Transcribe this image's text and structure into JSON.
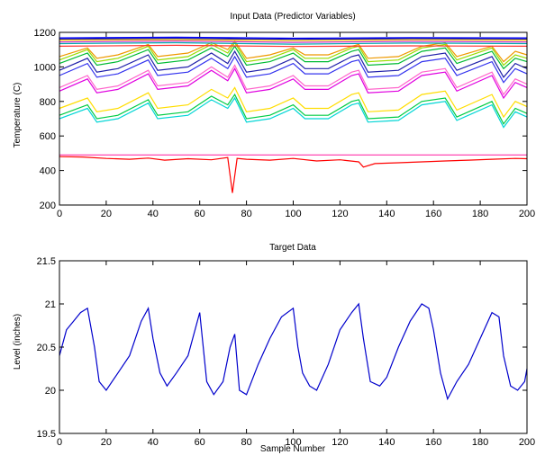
{
  "chart_data": [
    {
      "type": "line",
      "title": "Input Data (Predictor Variables)",
      "xlabel": "",
      "ylabel": "Temperature (C)",
      "xlim": [
        0,
        200
      ],
      "ylim": [
        200,
        1200
      ],
      "xticks": [
        0,
        20,
        40,
        60,
        80,
        100,
        120,
        140,
        160,
        180,
        200
      ],
      "yticks": [
        200,
        400,
        600,
        800,
        1000,
        1200
      ],
      "grid": false,
      "colors": [
        "#ff0000",
        "#ff33aa",
        "#00d5d5",
        "#00cc44",
        "#ffdd00",
        "#e000e0",
        "#ff66cc",
        "#3333ee",
        "#2222aa",
        "#00bb33",
        "#99dd00",
        "#ee9900",
        "#ff3333",
        "#00aaaa",
        "#cc33cc",
        "#ffcc00",
        "#000099",
        "#0000ff"
      ],
      "series": [
        {
          "x": [
            0,
            10,
            20,
            30,
            38,
            45,
            55,
            65,
            72,
            74,
            76,
            80,
            90,
            100,
            110,
            120,
            128,
            130,
            135,
            145,
            155,
            165,
            175,
            185,
            195,
            200
          ],
          "y": [
            480,
            478,
            470,
            465,
            472,
            460,
            468,
            462,
            475,
            270,
            470,
            465,
            460,
            470,
            455,
            462,
            450,
            420,
            440,
            445,
            450,
            455,
            460,
            465,
            470,
            468
          ]
        },
        {
          "x": [
            0,
            200
          ],
          "y": [
            490,
            490
          ]
        },
        {
          "x": [
            0,
            12,
            16,
            25,
            38,
            42,
            55,
            65,
            72,
            75,
            80,
            90,
            100,
            105,
            115,
            125,
            128,
            132,
            145,
            155,
            165,
            170,
            185,
            190,
            195,
            200
          ],
          "y": [
            700,
            760,
            680,
            700,
            790,
            700,
            720,
            810,
            760,
            820,
            680,
            700,
            760,
            700,
            700,
            780,
            790,
            680,
            690,
            780,
            800,
            690,
            780,
            650,
            740,
            710
          ]
        },
        {
          "x": [
            0,
            12,
            16,
            25,
            38,
            42,
            55,
            65,
            72,
            75,
            80,
            90,
            100,
            105,
            115,
            125,
            128,
            132,
            145,
            155,
            165,
            170,
            185,
            190,
            195,
            200
          ],
          "y": [
            720,
            780,
            700,
            720,
            810,
            720,
            740,
            830,
            780,
            840,
            700,
            720,
            780,
            720,
            720,
            800,
            810,
            700,
            710,
            800,
            820,
            710,
            800,
            670,
            760,
            730
          ]
        },
        {
          "x": [
            0,
            12,
            16,
            25,
            38,
            42,
            55,
            65,
            72,
            75,
            80,
            90,
            100,
            105,
            115,
            125,
            128,
            132,
            145,
            155,
            165,
            170,
            185,
            190,
            195,
            200
          ],
          "y": [
            760,
            820,
            740,
            760,
            850,
            760,
            780,
            870,
            820,
            880,
            740,
            760,
            820,
            760,
            760,
            840,
            850,
            740,
            750,
            840,
            860,
            750,
            840,
            710,
            800,
            770
          ]
        },
        {
          "x": [
            0,
            12,
            16,
            25,
            38,
            42,
            55,
            65,
            72,
            75,
            80,
            90,
            100,
            105,
            115,
            125,
            128,
            132,
            145,
            155,
            165,
            170,
            185,
            190,
            195,
            200
          ],
          "y": [
            860,
            930,
            850,
            870,
            960,
            870,
            890,
            980,
            920,
            990,
            850,
            870,
            930,
            870,
            870,
            950,
            960,
            850,
            860,
            950,
            970,
            860,
            950,
            820,
            910,
            880
          ]
        },
        {
          "x": [
            0,
            12,
            16,
            25,
            38,
            42,
            55,
            65,
            72,
            75,
            80,
            90,
            100,
            105,
            115,
            125,
            128,
            132,
            145,
            155,
            165,
            170,
            185,
            190,
            195,
            200
          ],
          "y": [
            880,
            950,
            870,
            890,
            980,
            890,
            910,
            1000,
            940,
            1010,
            870,
            890,
            950,
            890,
            890,
            970,
            980,
            870,
            880,
            970,
            990,
            880,
            970,
            840,
            930,
            900
          ]
        },
        {
          "x": [
            0,
            12,
            16,
            25,
            38,
            42,
            55,
            65,
            72,
            75,
            80,
            90,
            100,
            105,
            115,
            125,
            128,
            132,
            145,
            155,
            165,
            170,
            185,
            190,
            195,
            200
          ],
          "y": [
            950,
            1020,
            940,
            960,
            1040,
            950,
            970,
            1050,
            990,
            1060,
            940,
            960,
            1020,
            960,
            960,
            1030,
            1040,
            940,
            950,
            1030,
            1050,
            950,
            1030,
            910,
            990,
            960
          ]
        },
        {
          "x": [
            0,
            12,
            16,
            25,
            38,
            42,
            55,
            65,
            72,
            75,
            80,
            90,
            100,
            105,
            115,
            125,
            128,
            132,
            145,
            155,
            165,
            170,
            185,
            190,
            195,
            200
          ],
          "y": [
            980,
            1050,
            970,
            990,
            1070,
            980,
            1000,
            1080,
            1020,
            1090,
            970,
            990,
            1050,
            990,
            990,
            1060,
            1070,
            970,
            980,
            1060,
            1080,
            980,
            1060,
            940,
            1020,
            990
          ]
        },
        {
          "x": [
            0,
            12,
            16,
            25,
            38,
            42,
            55,
            65,
            72,
            75,
            80,
            90,
            100,
            105,
            115,
            125,
            128,
            132,
            145,
            155,
            165,
            170,
            185,
            190,
            195,
            200
          ],
          "y": [
            1020,
            1080,
            1010,
            1030,
            1100,
            1020,
            1040,
            1110,
            1060,
            1120,
            1010,
            1030,
            1080,
            1030,
            1030,
            1090,
            1100,
            1010,
            1020,
            1090,
            1110,
            1020,
            1090,
            990,
            1050,
            1030
          ]
        },
        {
          "x": [
            0,
            12,
            16,
            25,
            38,
            42,
            55,
            65,
            72,
            75,
            80,
            90,
            100,
            105,
            115,
            125,
            128,
            132,
            145,
            155,
            165,
            170,
            185,
            190,
            195,
            200
          ],
          "y": [
            1040,
            1100,
            1030,
            1050,
            1120,
            1040,
            1060,
            1130,
            1080,
            1140,
            1030,
            1050,
            1100,
            1050,
            1050,
            1110,
            1120,
            1030,
            1040,
            1110,
            1130,
            1040,
            1110,
            1010,
            1070,
            1050
          ]
        },
        {
          "x": [
            0,
            12,
            16,
            25,
            38,
            42,
            55,
            65,
            72,
            75,
            80,
            90,
            100,
            105,
            115,
            125,
            128,
            132,
            145,
            155,
            165,
            170,
            185,
            190,
            195,
            200
          ],
          "y": [
            1060,
            1110,
            1050,
            1070,
            1130,
            1060,
            1080,
            1140,
            1100,
            1150,
            1050,
            1070,
            1110,
            1070,
            1070,
            1120,
            1130,
            1050,
            1060,
            1120,
            1140,
            1060,
            1120,
            1030,
            1090,
            1070
          ]
        },
        {
          "x": [
            0,
            50,
            100,
            150,
            200
          ],
          "y": [
            1120,
            1125,
            1118,
            1122,
            1120
          ]
        },
        {
          "x": [
            0,
            50,
            100,
            150,
            200
          ],
          "y": [
            1135,
            1140,
            1132,
            1138,
            1135
          ]
        },
        {
          "x": [
            0,
            50,
            100,
            150,
            200
          ],
          "y": [
            1145,
            1150,
            1142,
            1148,
            1145
          ]
        },
        {
          "x": [
            0,
            50,
            100,
            150,
            200
          ],
          "y": [
            1155,
            1158,
            1152,
            1157,
            1155
          ]
        },
        {
          "x": [
            0,
            50,
            100,
            150,
            200
          ],
          "y": [
            1162,
            1165,
            1160,
            1164,
            1162
          ]
        },
        {
          "x": [
            0,
            50,
            100,
            150,
            200
          ],
          "y": [
            1168,
            1172,
            1166,
            1170,
            1168
          ]
        }
      ]
    },
    {
      "type": "line",
      "title": "Target Data",
      "xlabel": "Sample Number",
      "ylabel": "Level (inches)",
      "xlim": [
        0,
        200
      ],
      "ylim": [
        19.5,
        21.5
      ],
      "xticks": [
        0,
        20,
        40,
        60,
        80,
        100,
        120,
        140,
        160,
        180,
        200
      ],
      "yticks": [
        19.5,
        20,
        20.5,
        21,
        21.5
      ],
      "yticklabels": [
        "19.5",
        "20",
        "20.5",
        "21",
        "21.5"
      ],
      "grid": false,
      "color": "#0000cc",
      "series": [
        {
          "x": [
            0,
            3,
            6,
            9,
            12,
            15,
            17,
            20,
            25,
            30,
            35,
            38,
            40,
            43,
            46,
            50,
            55,
            60,
            63,
            66,
            70,
            73,
            75,
            77,
            80,
            85,
            90,
            95,
            100,
            102,
            104,
            107,
            110,
            115,
            120,
            125,
            128,
            130,
            133,
            137,
            140,
            145,
            150,
            155,
            158,
            160,
            163,
            166,
            170,
            175,
            180,
            185,
            188,
            190,
            193,
            196,
            199,
            200
          ],
          "y": [
            20.4,
            20.7,
            20.8,
            20.9,
            20.95,
            20.5,
            20.1,
            20.0,
            20.2,
            20.4,
            20.8,
            20.95,
            20.6,
            20.2,
            20.05,
            20.2,
            20.4,
            20.9,
            20.1,
            19.95,
            20.1,
            20.5,
            20.65,
            20.0,
            19.95,
            20.3,
            20.6,
            20.85,
            20.95,
            20.5,
            20.2,
            20.05,
            20.0,
            20.3,
            20.7,
            20.9,
            21.0,
            20.6,
            20.1,
            20.05,
            20.15,
            20.5,
            20.8,
            21.0,
            20.95,
            20.7,
            20.2,
            19.9,
            20.1,
            20.3,
            20.6,
            20.9,
            20.85,
            20.4,
            20.05,
            20.0,
            20.1,
            20.25
          ]
        }
      ]
    }
  ]
}
